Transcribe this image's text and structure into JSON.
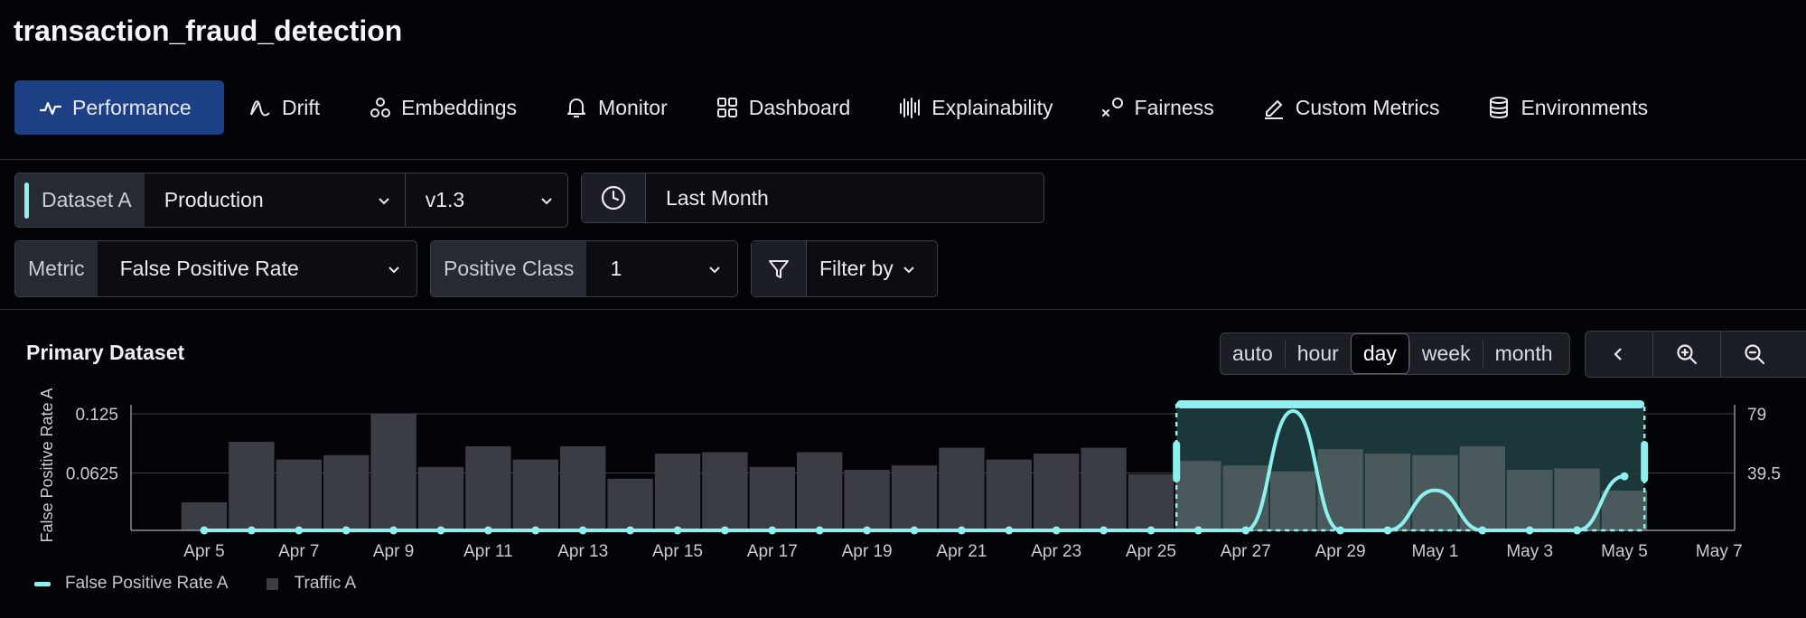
{
  "model_name": "transaction_fraud_detection",
  "tabs": [
    {
      "label": "Performance",
      "icon": "pulse-icon",
      "active": true
    },
    {
      "label": "Drift",
      "icon": "drift-icon"
    },
    {
      "label": "Embeddings",
      "icon": "embeddings-icon"
    },
    {
      "label": "Monitor",
      "icon": "bell-icon"
    },
    {
      "label": "Dashboard",
      "icon": "grid-icon"
    },
    {
      "label": "Explainability",
      "icon": "bars-icon"
    },
    {
      "label": "Fairness",
      "icon": "fairness-icon"
    },
    {
      "label": "Custom Metrics",
      "icon": "pencil-icon"
    },
    {
      "label": "Environments",
      "icon": "database-icon"
    }
  ],
  "filters": {
    "dataset_label": "Dataset A",
    "dataset_value": "Production",
    "version_value": "v1.3",
    "time_range": "Last Month",
    "metric_label": "Metric",
    "metric_value": "False Positive Rate",
    "positive_class_label": "Positive Class",
    "positive_class_value": "1",
    "filter_by": "Filter by"
  },
  "panel": {
    "title": "Primary Dataset",
    "granularity": [
      "auto",
      "hour",
      "day",
      "week",
      "month"
    ],
    "granularity_selected": "day"
  },
  "colors": {
    "accent_line": "#8ef0ef",
    "bar": "#3a3d44",
    "active_tab": "#1c3f86",
    "selection_fill": "#1f3d3f"
  },
  "chart_data": {
    "type": "bar+line",
    "ylabel_left": "False Positive Rate A",
    "left_ticks": [
      "0.125",
      "0.0625"
    ],
    "right_ticks": [
      "79",
      "39.5"
    ],
    "left_ylim": [
      0,
      0.125
    ],
    "right_ylim": [
      0,
      79
    ],
    "x_ticks": [
      "Apr 5",
      "Apr 7",
      "Apr 9",
      "Apr 11",
      "Apr 13",
      "Apr 15",
      "Apr 17",
      "Apr 19",
      "Apr 21",
      "Apr 23",
      "Apr 25",
      "Apr 27",
      "Apr 29",
      "May 1",
      "May 3",
      "May 5",
      "May 7"
    ],
    "categories": [
      "Apr 5",
      "Apr 6",
      "Apr 7",
      "Apr 8",
      "Apr 9",
      "Apr 10",
      "Apr 11",
      "Apr 12",
      "Apr 13",
      "Apr 14",
      "Apr 15",
      "Apr 16",
      "Apr 17",
      "Apr 18",
      "Apr 19",
      "Apr 20",
      "Apr 21",
      "Apr 22",
      "Apr 23",
      "Apr 24",
      "Apr 25",
      "Apr 26",
      "Apr 27",
      "Apr 28",
      "Apr 29",
      "Apr 30",
      "May 1",
      "May 2",
      "May 3",
      "May 4",
      "May 5"
    ],
    "series": [
      {
        "name": "Traffic A",
        "type": "bar",
        "values": [
          19,
          60,
          48,
          51,
          79,
          43,
          57,
          48,
          57,
          35,
          52,
          53,
          43,
          53,
          41,
          44,
          56,
          48,
          52,
          56,
          38,
          47,
          44,
          40,
          55,
          52,
          51,
          57,
          41,
          42,
          27
        ]
      },
      {
        "name": "False Positive Rate A",
        "type": "line",
        "values": [
          0,
          0,
          0,
          0,
          0,
          0,
          0,
          0,
          0,
          0,
          0,
          0,
          0,
          0,
          0,
          0,
          0,
          0,
          0,
          0,
          0,
          0,
          0,
          0.128,
          0,
          0,
          0.043,
          0,
          0,
          0,
          0.058
        ]
      }
    ],
    "selection_range": [
      "Apr 26",
      "May 5"
    ],
    "grid": true,
    "legend": "bottom-left"
  }
}
